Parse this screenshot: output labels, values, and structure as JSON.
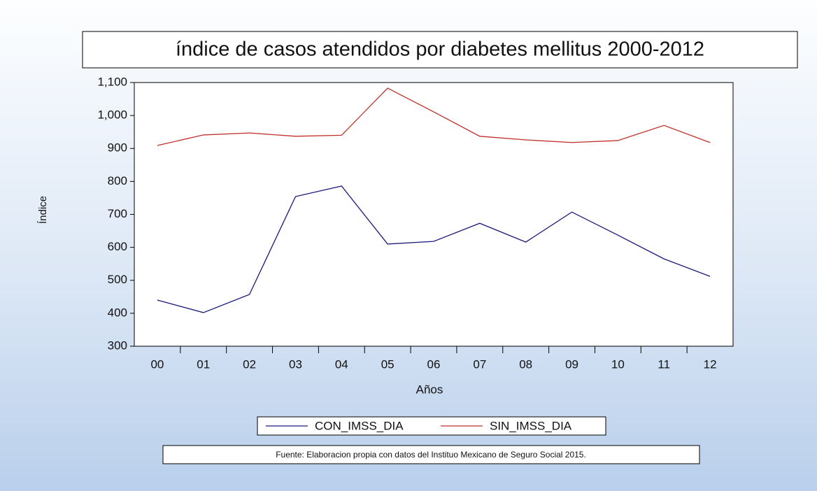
{
  "chart_data": {
    "type": "line",
    "title": "índice de casos atendidos por diabetes mellitus 2000-2012",
    "x_label": "Años",
    "y_label": "Índice",
    "categories": [
      "00",
      "01",
      "02",
      "03",
      "04",
      "05",
      "06",
      "07",
      "08",
      "09",
      "10",
      "11",
      "12"
    ],
    "series": [
      {
        "name": "CON_IMSS_DIA",
        "color": "#1a1a7a",
        "values": [
          440,
          402,
          457,
          754,
          786,
          610,
          618,
          673,
          616,
          707,
          637,
          565,
          512
        ]
      },
      {
        "name": "SIN_IMSS_DIA",
        "color": "#c0302a",
        "values": [
          909,
          941,
          947,
          937,
          940,
          1083,
          1011,
          937,
          926,
          918,
          924,
          970,
          918
        ]
      }
    ],
    "ylim": [
      300,
      1100
    ],
    "yticks": [
      300,
      400,
      500,
      600,
      700,
      800,
      900,
      {
        "value": 1000,
        "label": "1,000"
      },
      {
        "value": 1100,
        "label": "1,100"
      }
    ],
    "legend": "bottom",
    "source": "Fuente: Elaboracion propia con datos del Instituo Mexicano de Seguro Social 2015."
  }
}
